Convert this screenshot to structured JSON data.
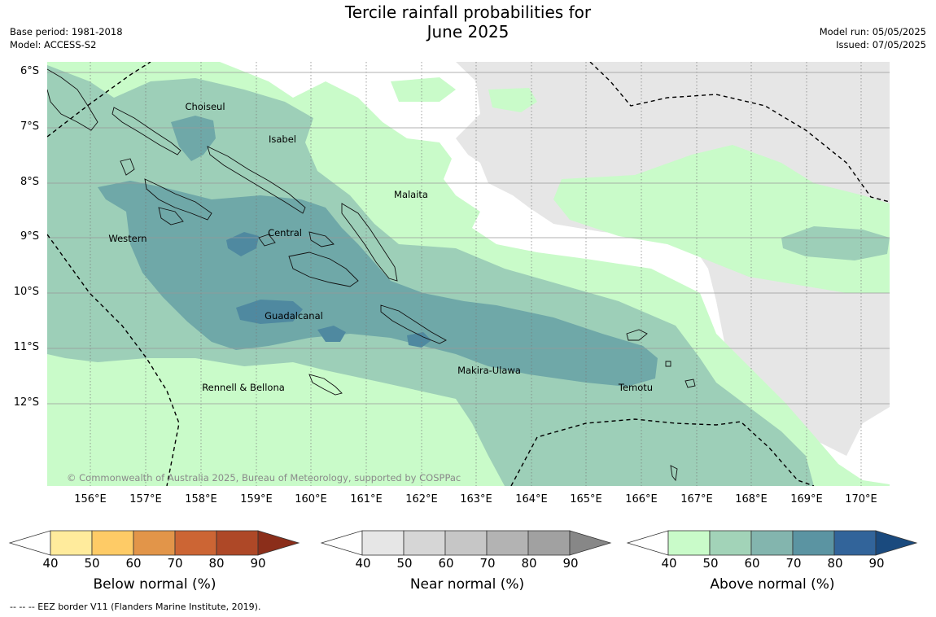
{
  "header": {
    "title_line1": "Tercile rainfall probabilities for",
    "title_line2": "June 2025",
    "base_period": "Base period: 1981-2018",
    "model": "Model: ACCESS-S2",
    "model_run": "Model run: 05/05/2025",
    "issued": "Issued: 07/05/2025"
  },
  "map": {
    "lat_ticks": [
      "6°S",
      "7°S",
      "8°S",
      "9°S",
      "10°S",
      "11°S",
      "12°S"
    ],
    "lon_ticks": [
      "156°E",
      "157°E",
      "158°E",
      "159°E",
      "160°E",
      "161°E",
      "162°E",
      "163°E",
      "164°E",
      "165°E",
      "166°E",
      "167°E",
      "168°E",
      "169°E",
      "170°E"
    ],
    "regions": [
      "Choiseul",
      "Isabel",
      "Malaita",
      "Central",
      "Western",
      "Guadalcanal",
      "Makira-Ulawa",
      "Rennell & Bellona",
      "Temotu"
    ],
    "copyright": "© Commonwealth of Australia 2025, Bureau of Meteorology, supported by COSPPac",
    "colors": {
      "ocean_nodata": "#ffffff",
      "near_normal_40": "#e6e6e6",
      "above_40": "#c9fbc9",
      "above_50": "#9dcfb8",
      "above_60": "#78b3ae",
      "above_70": "#5c98a6",
      "above_80": "#3f78a0"
    }
  },
  "legends": [
    {
      "title": "Below normal (%)",
      "ticks": [
        "40",
        "50",
        "60",
        "70",
        "80",
        "90"
      ],
      "colors": [
        "#ffffff",
        "#ffeb9c",
        "#fecb66",
        "#e29549",
        "#cc6534",
        "#ae4827",
        "#8b2e1a"
      ]
    },
    {
      "title": "Near normal (%)",
      "ticks": [
        "40",
        "50",
        "60",
        "70",
        "80",
        "90"
      ],
      "colors": [
        "#ffffff",
        "#e6e6e6",
        "#d6d6d6",
        "#c6c6c6",
        "#b3b3b3",
        "#a1a1a1",
        "#878787"
      ]
    },
    {
      "title": "Above normal (%)",
      "ticks": [
        "40",
        "50",
        "60",
        "70",
        "80",
        "90"
      ],
      "colors": [
        "#ffffff",
        "#c9fbc9",
        "#a2d3b8",
        "#83b5ae",
        "#5b94a2",
        "#32649a",
        "#1a4a7e"
      ]
    }
  ],
  "footnote": "--  --  -- EEZ border V11 (Flanders Marine Institute, 2019)."
}
